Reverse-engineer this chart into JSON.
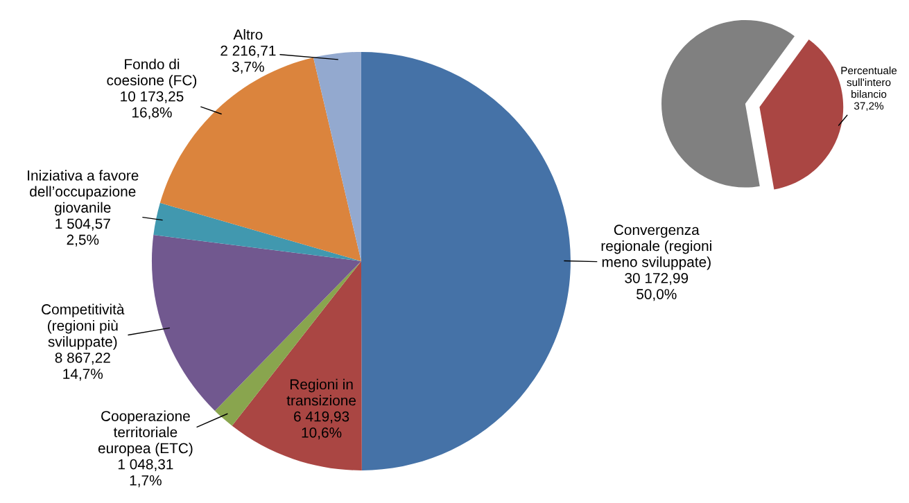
{
  "chart_data": [
    {
      "type": "pie",
      "categories": [
        "Convergenza\nregionale (regioni\nmeno sviluppate)",
        "Regioni in\ntransizione",
        "Cooperazione\nterritoriale\neuropea (ETC)",
        "Competitività\n(regioni più\nsviluppate)",
        "Iniziativa a favore\ndell’occupazione\ngiovanile",
        "Fondo di\ncoesione (FC)",
        "Altro"
      ],
      "values": [
        30172.99,
        6419.93,
        1048.31,
        8867.22,
        1504.57,
        10173.25,
        2216.71
      ],
      "value_labels": [
        "30 172,99\n50,0%",
        "6 419,93\n10,6%",
        "1 048,31\n1,7%",
        "8 867,22\n14,7%",
        "1 504,57\n2,5%",
        "10 173,25\n16,8%",
        "2 216,71\n3,7%"
      ],
      "colors": [
        "#4572a7",
        "#aa4643",
        "#89a54e",
        "#71588f",
        "#4198af",
        "#db843d",
        "#93a9cf"
      ]
    },
    {
      "type": "pie",
      "categories": [
        null,
        "Percentuale\nsull'intero\nbilancio"
      ],
      "values": [
        62.8,
        37.2
      ],
      "value_labels": [
        null,
        "37,2%"
      ],
      "colors": [
        "#808080",
        "#aa4643"
      ]
    }
  ]
}
